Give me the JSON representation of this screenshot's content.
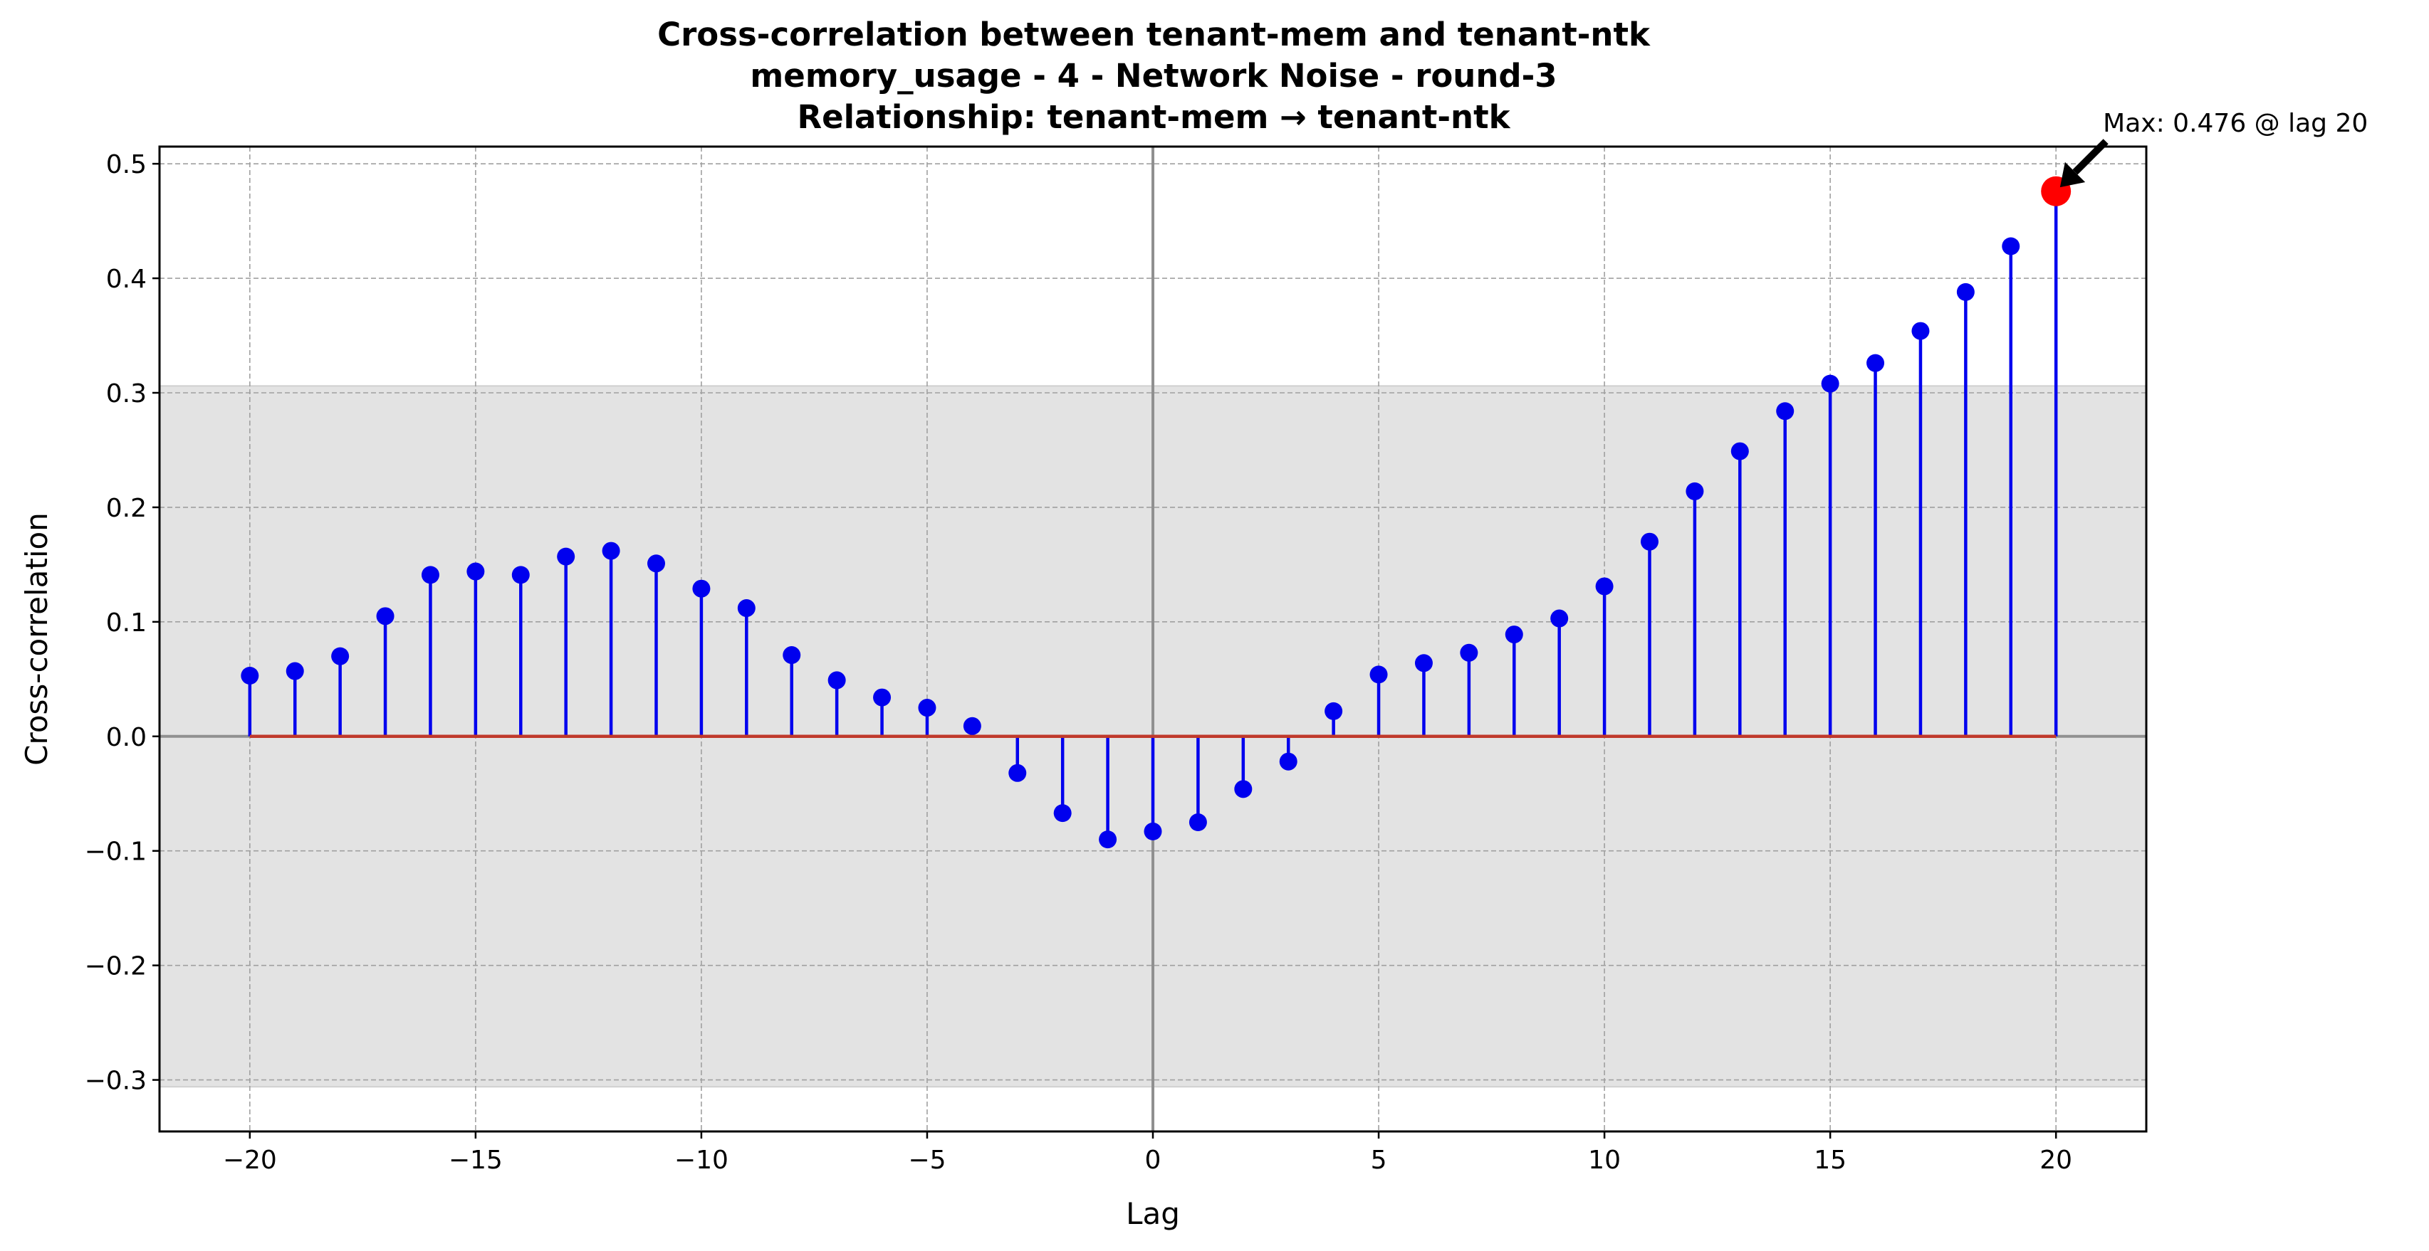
{
  "chart_data": {
    "type": "stem",
    "title_lines": [
      "Cross-correlation between tenant-mem and tenant-ntk",
      "memory_usage - 4 - Network Noise - round-3",
      "Relationship: tenant-mem → tenant-ntk"
    ],
    "xlabel": "Lag",
    "ylabel": "Cross-correlation",
    "xlim": [
      -22,
      22
    ],
    "ylim": [
      -0.345,
      0.515
    ],
    "xticks": [
      -20,
      -15,
      -10,
      -5,
      0,
      5,
      10,
      15,
      20
    ],
    "xtick_labels": [
      "−20",
      "−15",
      "−10",
      "−5",
      "0",
      "5",
      "10",
      "15",
      "20"
    ],
    "yticks": [
      -0.3,
      -0.2,
      -0.1,
      0.0,
      0.1,
      0.2,
      0.3,
      0.4,
      0.5
    ],
    "ytick_labels": [
      "−0.3",
      "−0.2",
      "−0.1",
      "0.0",
      "0.1",
      "0.2",
      "0.3",
      "0.4",
      "0.5"
    ],
    "grid": true,
    "confidence_band": [
      -0.306,
      0.306
    ],
    "x": [
      -20,
      -19,
      -18,
      -17,
      -16,
      -15,
      -14,
      -13,
      -12,
      -11,
      -10,
      -9,
      -8,
      -7,
      -6,
      -5,
      -4,
      -3,
      -2,
      -1,
      0,
      1,
      2,
      3,
      4,
      5,
      6,
      7,
      8,
      9,
      10,
      11,
      12,
      13,
      14,
      15,
      16,
      17,
      18,
      19,
      20
    ],
    "y": [
      0.053,
      0.057,
      0.07,
      0.105,
      0.141,
      0.144,
      0.141,
      0.157,
      0.162,
      0.151,
      0.129,
      0.112,
      0.071,
      0.049,
      0.034,
      0.025,
      0.009,
      -0.032,
      -0.067,
      -0.09,
      -0.083,
      -0.075,
      -0.046,
      -0.022,
      0.022,
      0.054,
      0.064,
      0.073,
      0.089,
      0.103,
      0.131,
      0.17,
      0.214,
      0.249,
      0.284,
      0.308,
      0.326,
      0.354,
      0.388,
      0.428,
      0.476
    ],
    "max_point": {
      "lag": 20,
      "value": 0.476
    },
    "annotation": "Max: 0.476 @ lag 20",
    "colors": {
      "stem": "#0000ee",
      "marker": "#0000ee",
      "baseline": "#c0392b",
      "max_marker": "#ff0000",
      "band": "#e3e3e3",
      "grid": "#a0a0a0",
      "zero_lines": "#909090"
    }
  }
}
